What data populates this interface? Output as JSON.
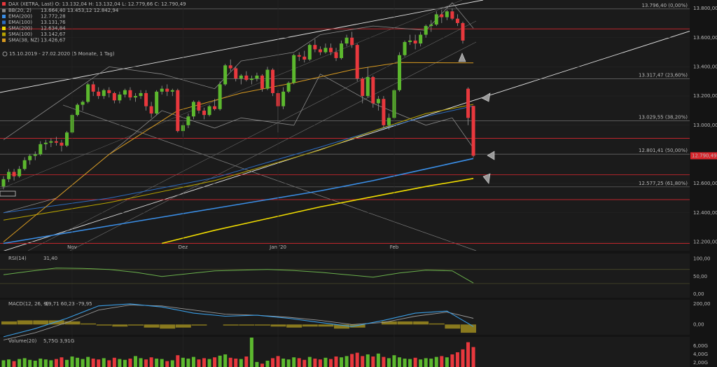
{
  "chart_data": {
    "type": "candlestick",
    "header": "DAX (XETRA, Last)  O: 13.132,04  H: 13.132,04  L: 12.779,66  C: 12.790,49",
    "bb_legend": {
      "name": "BB(20, 2)",
      "last": "13.664,40  13.453,12  12.842,94",
      "color": "#8a8a8a"
    },
    "range_text": "15.10.2019 - 27.02.2020  (5 Monate, 1 Tag)",
    "up_color": "#5cb82e",
    "down_color": "#e8383d",
    "ylim": [
      12130,
      13858
    ],
    "yticks": [
      {
        "value": 13800,
        "label": "13.800,00"
      },
      {
        "value": 13600,
        "label": "13.600,00"
      },
      {
        "value": 13400,
        "label": "13.400,00"
      },
      {
        "value": 13200,
        "label": "13.200,00"
      },
      {
        "value": 13000,
        "label": "13.000,00"
      },
      {
        "value": 12800,
        "label": "12.800,00"
      },
      {
        "value": 12600,
        "label": "12.600,00"
      },
      {
        "value": 12400,
        "label": "12.400,00"
      },
      {
        "value": 12200,
        "label": "12.200,00"
      }
    ],
    "xticks": [
      {
        "value": 13,
        "label": "Nov"
      },
      {
        "value": 34,
        "label": "Dez"
      },
      {
        "value": 52,
        "label": "Jan '20"
      },
      {
        "value": 74,
        "label": "Feb"
      }
    ],
    "price_tag": {
      "value": 12790.49,
      "label": "12.790,49"
    },
    "fib_levels": [
      {
        "value": 13796.4,
        "label": "13.796,40 (0,00%)"
      },
      {
        "value": 13317.47,
        "label": "13.317,47 (23,60%)"
      },
      {
        "value": 13029.55,
        "label": "13.029,55 (38,20%)"
      },
      {
        "value": 12801.41,
        "label": "12.801,41 (50,00%)"
      },
      {
        "value": 12577.25,
        "label": "12.577,25 (61,80%)"
      }
    ],
    "support_lines": [
      13660,
      12910,
      12660,
      12490,
      12190
    ],
    "candles": [
      [
        12580,
        12650,
        12560,
        12630
      ],
      [
        12630,
        12700,
        12610,
        12680
      ],
      [
        12680,
        12700,
        12620,
        12650
      ],
      [
        12650,
        12720,
        12640,
        12700
      ],
      [
        12700,
        12780,
        12690,
        12760
      ],
      [
        12760,
        12800,
        12730,
        12790
      ],
      [
        12790,
        12820,
        12760,
        12800
      ],
      [
        12800,
        12890,
        12790,
        12870
      ],
      [
        12870,
        12900,
        12830,
        12880
      ],
      [
        12880,
        12910,
        12850,
        12890
      ],
      [
        12890,
        12920,
        12860,
        12880
      ],
      [
        12880,
        12900,
        12820,
        12860
      ],
      [
        12860,
        12960,
        12850,
        12950
      ],
      [
        12950,
        13080,
        12940,
        13070
      ],
      [
        13070,
        13150,
        13060,
        13140
      ],
      [
        13140,
        13170,
        13100,
        13160
      ],
      [
        13160,
        13290,
        13150,
        13280
      ],
      [
        13280,
        13300,
        13200,
        13230
      ],
      [
        13230,
        13260,
        13180,
        13200
      ],
      [
        13200,
        13250,
        13180,
        13240
      ],
      [
        13240,
        13260,
        13190,
        13220
      ],
      [
        13220,
        13230,
        13150,
        13170
      ],
      [
        13170,
        13230,
        13150,
        13210
      ],
      [
        13210,
        13250,
        13190,
        13240
      ],
      [
        13240,
        13260,
        13170,
        13190
      ],
      [
        13190,
        13220,
        13160,
        13200
      ],
      [
        13200,
        13240,
        13180,
        13220
      ],
      [
        13220,
        13240,
        13100,
        13130
      ],
      [
        13130,
        13160,
        13050,
        13080
      ],
      [
        13080,
        13240,
        13070,
        13230
      ],
      [
        13230,
        13270,
        13210,
        13250
      ],
      [
        13250,
        13280,
        13200,
        13230
      ],
      [
        13230,
        13250,
        13200,
        13240
      ],
      [
        13240,
        13250,
        12950,
        12960
      ],
      [
        12960,
        13020,
        12920,
        13000
      ],
      [
        13000,
        13080,
        12980,
        13060
      ],
      [
        13060,
        13170,
        13040,
        13160
      ],
      [
        13160,
        13170,
        13080,
        13100
      ],
      [
        13100,
        13120,
        13040,
        13070
      ],
      [
        13070,
        13140,
        13060,
        13130
      ],
      [
        13130,
        13180,
        13100,
        13110
      ],
      [
        13110,
        13300,
        13100,
        13280
      ],
      [
        13280,
        13420,
        13270,
        13410
      ],
      [
        13410,
        13450,
        13370,
        13390
      ],
      [
        13390,
        13400,
        13300,
        13320
      ],
      [
        13320,
        13350,
        13280,
        13340
      ],
      [
        13340,
        13370,
        13300,
        13310
      ],
      [
        13310,
        13340,
        13280,
        13320
      ],
      [
        13320,
        13360,
        13300,
        13340
      ],
      [
        13340,
        13350,
        13230,
        13250
      ],
      [
        13250,
        13400,
        13240,
        13380
      ],
      [
        13380,
        13390,
        13200,
        13220
      ],
      [
        13220,
        13240,
        12950,
        13130
      ],
      [
        13130,
        13260,
        13110,
        13230
      ],
      [
        13230,
        13300,
        13220,
        13290
      ],
      [
        13290,
        13490,
        13280,
        13480
      ],
      [
        13480,
        13500,
        13440,
        13470
      ],
      [
        13470,
        13510,
        13430,
        13450
      ],
      [
        13450,
        13560,
        13440,
        13550
      ],
      [
        13550,
        13590,
        13500,
        13520
      ],
      [
        13520,
        13540,
        13480,
        13500
      ],
      [
        13500,
        13560,
        13490,
        13530
      ],
      [
        13530,
        13560,
        13480,
        13500
      ],
      [
        13500,
        13530,
        13440,
        13460
      ],
      [
        13460,
        13580,
        13450,
        13560
      ],
      [
        13560,
        13620,
        13540,
        13600
      ],
      [
        13600,
        13640,
        13530,
        13550
      ],
      [
        13550,
        13560,
        13300,
        13320
      ],
      [
        13320,
        13330,
        13150,
        13200
      ],
      [
        13200,
        13400,
        13190,
        13330
      ],
      [
        13330,
        13340,
        13120,
        13150
      ],
      [
        13150,
        13200,
        13100,
        13180
      ],
      [
        13180,
        13200,
        12980,
        13000
      ],
      [
        13000,
        13080,
        12970,
        13050
      ],
      [
        13050,
        13250,
        13040,
        13240
      ],
      [
        13240,
        13500,
        13230,
        13480
      ],
      [
        13480,
        13580,
        13470,
        13570
      ],
      [
        13570,
        13620,
        13550,
        13580
      ],
      [
        13580,
        13620,
        13520,
        13560
      ],
      [
        13560,
        13640,
        13540,
        13620
      ],
      [
        13620,
        13690,
        13600,
        13680
      ],
      [
        13680,
        13720,
        13640,
        13690
      ],
      [
        13690,
        13780,
        13680,
        13760
      ],
      [
        13760,
        13790,
        13700,
        13740
      ],
      [
        13740,
        13790,
        13720,
        13780
      ],
      [
        13780,
        13800,
        13720,
        13730
      ],
      [
        13730,
        13760,
        13680,
        13700
      ],
      [
        13700,
        13710,
        13560,
        13580
      ],
      [
        13250,
        13260,
        13000,
        13050
      ],
      [
        13132.04,
        13132.04,
        12779.66,
        12790.49
      ]
    ],
    "series": [
      {
        "name": "EMA(200)",
        "last": "12.772,28",
        "color": "#3a8ee6",
        "width": 1.6,
        "x": [
          0,
          10,
          20,
          30,
          40,
          50,
          60,
          70,
          80,
          89
        ],
        "values": [
          12190,
          12250,
          12310,
          12370,
          12430,
          12490,
          12550,
          12620,
          12700,
          12772
        ]
      },
      {
        "name": "EMA(100)",
        "last": "13.131,76",
        "color": "#2d6cc0",
        "width": 1,
        "x": [
          0,
          20,
          40,
          60,
          70,
          80,
          89
        ],
        "values": [
          12400,
          12500,
          12640,
          12850,
          12960,
          13060,
          13132
        ]
      },
      {
        "name": "SMA(200)",
        "last": "12.634,84",
        "color": "#f0dc00",
        "width": 1.6,
        "x": [
          30,
          40,
          50,
          60,
          70,
          80,
          89
        ],
        "values": [
          12190,
          12280,
          12360,
          12440,
          12510,
          12580,
          12635
        ]
      },
      {
        "name": "SMA(100)",
        "last": "13.142,67",
        "color": "#b8a400",
        "width": 1,
        "x": [
          0,
          20,
          40,
          60,
          70,
          80,
          89
        ],
        "values": [
          12350,
          12470,
          12620,
          12830,
          12960,
          13080,
          13143
        ]
      },
      {
        "name": "SMA(38, NZ)",
        "last": "13.426,67",
        "color": "#d89a20",
        "width": 1,
        "x": [
          0,
          10,
          20,
          33,
          45,
          55,
          66,
          75,
          89
        ],
        "values": [
          12200,
          12500,
          12800,
          13100,
          13220,
          13290,
          13380,
          13430,
          13427
        ]
      }
    ],
    "bands": {
      "color": "#8a8a8a",
      "x": [
        0,
        10,
        20,
        30,
        40,
        45,
        55,
        60,
        70,
        80,
        85,
        89
      ],
      "upper": [
        12900,
        13150,
        13400,
        13350,
        13250,
        13440,
        13500,
        13620,
        13680,
        13650,
        13840,
        13664
      ],
      "lower": [
        12400,
        12500,
        12800,
        13100,
        12980,
        13050,
        13000,
        13350,
        13150,
        13000,
        13050,
        12843
      ]
    },
    "rsi": {
      "name": "RSI(14)",
      "last": "31,40",
      "color": "#6ab04c",
      "ylim": [
        -10,
        115
      ],
      "yticks": [
        {
          "value": 100,
          "label": "100,00"
        },
        {
          "value": 50,
          "label": "50,00"
        },
        {
          "value": 0,
          "label": "0,00"
        }
      ],
      "levels": [
        70,
        30
      ],
      "x": [
        0,
        5,
        10,
        15,
        20,
        25,
        30,
        35,
        40,
        45,
        50,
        55,
        60,
        65,
        70,
        75,
        80,
        85,
        89
      ],
      "values": [
        55,
        65,
        74,
        73,
        70,
        62,
        50,
        58,
        66,
        68,
        70,
        67,
        62,
        55,
        48,
        60,
        68,
        66,
        31.4
      ]
    },
    "macd": {
      "name": "MACD(12, 26, 9)",
      "last": "-19,71  60,23  -79,95",
      "ylim": [
        -100,
        240
      ],
      "yticks": [
        {
          "value": 200,
          "label": "200,00"
        },
        {
          "value": 0,
          "label": "0,00"
        }
      ],
      "x": [
        0,
        6,
        12,
        18,
        24,
        30,
        36,
        42,
        48,
        54,
        60,
        66,
        72,
        78,
        84,
        89
      ],
      "macd": [
        -120,
        -40,
        60,
        180,
        200,
        170,
        110,
        80,
        90,
        60,
        20,
        -20,
        40,
        110,
        130,
        -20
      ],
      "signal": [
        -150,
        -80,
        20,
        140,
        190,
        180,
        140,
        100,
        90,
        70,
        40,
        0,
        20,
        80,
        120,
        60
      ],
      "macd_color": "#3a9ee6",
      "signal_color": "#9a9a9a",
      "hist_color": "#8a7a1e",
      "hist_x": [
        0,
        3,
        6,
        9,
        12,
        15,
        18,
        21,
        24,
        27,
        30,
        33,
        36,
        39,
        42,
        45,
        48,
        51,
        54,
        57,
        60,
        63,
        66,
        69,
        72,
        75,
        78,
        81,
        84,
        87
      ],
      "hist": [
        30,
        40,
        40,
        40,
        30,
        10,
        -10,
        -20,
        -10,
        -30,
        -40,
        -30,
        -10,
        0,
        -10,
        -10,
        -10,
        -20,
        -30,
        -20,
        -20,
        -40,
        -30,
        0,
        30,
        30,
        30,
        10,
        -40,
        -80
      ]
    },
    "volume": {
      "name": "Volume(20)",
      "last": "5,75G  3,91G",
      "ylim": [
        1,
        8.17
      ],
      "yticks": [
        {
          "value": 6,
          "label": "6,00G"
        },
        {
          "value": 4,
          "label": "4,00G"
        },
        {
          "value": 2,
          "label": "2,00G"
        }
      ],
      "values": [
        2.6,
        2.8,
        2.4,
        2.9,
        3.1,
        2.7,
        2.5,
        3.0,
        2.8,
        2.6,
        2.9,
        3.3,
        2.7,
        3.5,
        3.2,
        2.9,
        3.4,
        3.0,
        2.8,
        3.1,
        2.6,
        3.2,
        2.9,
        2.7,
        3.0,
        3.6,
        3.1,
        2.8,
        3.3,
        3.0,
        2.9,
        2.4,
        2.6,
        3.8,
        3.2,
        3.0,
        3.4,
        2.8,
        3.1,
        2.9,
        3.3,
        3.7,
        4.0,
        3.2,
        3.0,
        2.9,
        3.5,
        8.0,
        2.2,
        1.8,
        2.5,
        3.1,
        3.6,
        3.0,
        2.8,
        3.3,
        3.1,
        2.7,
        3.4,
        3.0,
        2.8,
        3.2,
        2.9,
        3.5,
        3.3,
        3.6,
        4.1,
        4.4,
        3.6,
        4.0,
        3.5,
        4.2,
        3.4,
        3.1,
        3.8,
        3.3,
        3.0,
        2.9,
        3.2,
        2.8,
        3.1,
        3.0,
        3.4,
        3.6,
        3.3,
        4.0,
        4.5,
        5.2,
        6.9,
        5.75
      ]
    }
  }
}
